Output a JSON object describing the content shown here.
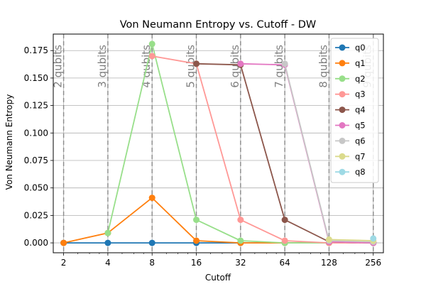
{
  "chart_data": {
    "type": "line",
    "title": "Von Neumann Entropy vs. Cutoff - DW",
    "xlabel": "Cutoff",
    "ylabel": "Von Neumann Entropy",
    "x_scale": "log2",
    "x": [
      2,
      4,
      8,
      16,
      32,
      64,
      128,
      256
    ],
    "x_tick_labels": [
      "2",
      "4",
      "8",
      "16",
      "32",
      "64",
      "128",
      "256"
    ],
    "xlim": [
      1.7,
      300
    ],
    "ylim": [
      -0.009,
      0.19
    ],
    "y_ticks": [
      0,
      0.025,
      0.05,
      0.075,
      0.1,
      0.125,
      0.15,
      0.175
    ],
    "y_tick_labels": [
      "0.000",
      "0.025",
      "0.050",
      "0.075",
      "0.100",
      "0.125",
      "0.150",
      "0.175"
    ],
    "grid": true,
    "legend_position": "top-right",
    "vertical_markers": [
      {
        "x": 2,
        "label": "2 qubits"
      },
      {
        "x": 4,
        "label": "3 qubits"
      },
      {
        "x": 8,
        "label": "4 qubits"
      },
      {
        "x": 16,
        "label": "5 qubits"
      },
      {
        "x": 32,
        "label": "6 qubits"
      },
      {
        "x": 64,
        "label": "7 qubits"
      },
      {
        "x": 128,
        "label": "8 qubits"
      },
      {
        "x": 256,
        "label": "9 qubits"
      }
    ],
    "series": [
      {
        "name": "q0",
        "color": "#1f77b4",
        "x": [
          2,
          4,
          8,
          16,
          32,
          64,
          128,
          256
        ],
        "values": [
          0,
          0,
          0,
          0,
          0,
          0,
          0,
          0
        ]
      },
      {
        "name": "q1",
        "color": "#ff7f0e",
        "x": [
          2,
          4,
          8,
          16,
          32,
          64,
          128,
          256
        ],
        "values": [
          0,
          0.009,
          0.041,
          0.002,
          0,
          0,
          0,
          0
        ]
      },
      {
        "name": "q2",
        "color": "#98df8a",
        "x": [
          4,
          8,
          16,
          32,
          64,
          128,
          256
        ],
        "values": [
          0.009,
          0.181,
          0.021,
          0.002,
          0,
          0,
          0
        ]
      },
      {
        "name": "q3",
        "color": "#ff9896",
        "x": [
          8,
          16,
          32,
          64,
          128,
          256
        ],
        "values": [
          0.17,
          0.163,
          0.021,
          0.002,
          0,
          0
        ]
      },
      {
        "name": "q4",
        "color": "#8c564b",
        "x": [
          16,
          32,
          64,
          128,
          256
        ],
        "values": [
          0.163,
          0.162,
          0.021,
          0.001,
          0
        ]
      },
      {
        "name": "q5",
        "color": "#e377c2",
        "x": [
          32,
          64,
          128,
          256
        ],
        "values": [
          0.163,
          0.162,
          0.001,
          0
        ]
      },
      {
        "name": "q6",
        "color": "#c7c7c7",
        "x": [
          64,
          128,
          256
        ],
        "values": [
          0.163,
          0.002,
          0.001
        ]
      },
      {
        "name": "q7",
        "color": "#dbdb8d",
        "x": [
          128,
          256
        ],
        "values": [
          0.003,
          0.002
        ]
      },
      {
        "name": "q8",
        "color": "#9edae5",
        "x": [
          256
        ],
        "values": [
          0.004
        ]
      }
    ]
  }
}
